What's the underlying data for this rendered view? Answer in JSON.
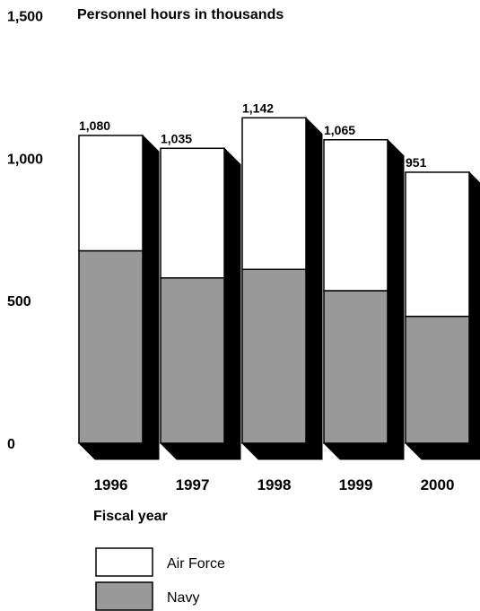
{
  "chart_data": {
    "type": "bar",
    "stacked": true,
    "unit_label": "Personnel hours in thousands",
    "xlabel": "Fiscal year",
    "ylabel": "",
    "ylim": [
      0,
      1500
    ],
    "yticks": [
      0,
      500,
      1000,
      1500
    ],
    "ytick_labels": [
      "0",
      "500",
      "1,000",
      "1,500"
    ],
    "grid": false,
    "legend_position": "bottom-left",
    "categories": [
      "1996",
      "1997",
      "1998",
      "1999",
      "2000"
    ],
    "series": [
      {
        "name": "Navy",
        "color": "#999999",
        "values": [
          675,
          580,
          610,
          535,
          445
        ]
      },
      {
        "name": "Air Force",
        "color": "#ffffff",
        "values": [
          405,
          455,
          532,
          530,
          506
        ]
      }
    ],
    "totals": [
      1080,
      1035,
      1142,
      1065,
      951
    ],
    "total_labels": [
      "1,080",
      "1,035",
      "1,142",
      "1,065",
      "951"
    ],
    "legend": [
      {
        "name": "Air Force",
        "color": "#ffffff"
      },
      {
        "name": "Navy",
        "color": "#999999"
      }
    ]
  }
}
